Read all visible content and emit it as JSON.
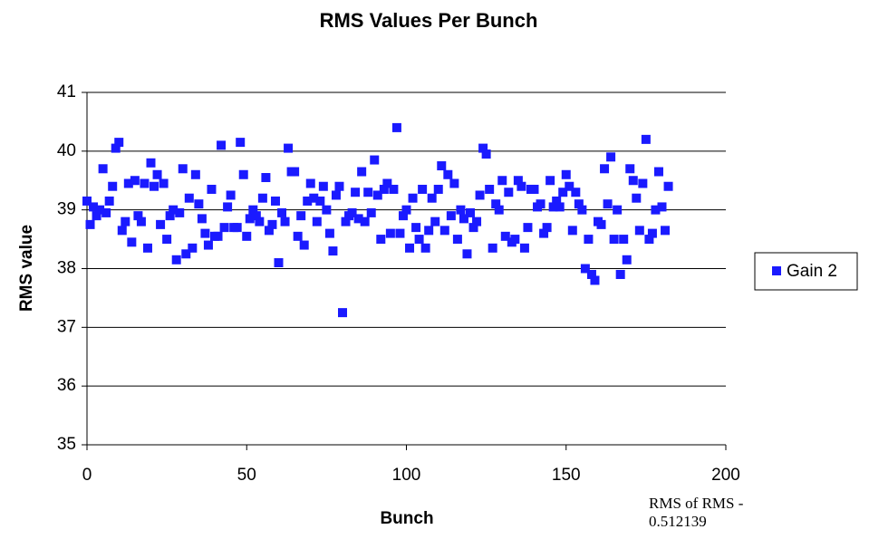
{
  "chart_data": {
    "type": "scatter",
    "title": "RMS Values Per Bunch",
    "x_label": "Bunch",
    "y_label": "RMS value",
    "annotation": "RMS of RMS - 0.512139",
    "xlim": [
      0,
      200
    ],
    "xticks": [
      0,
      50,
      100,
      150,
      200
    ],
    "ylim": [
      35,
      41
    ],
    "yticks": [
      35,
      36,
      37,
      38,
      39,
      40,
      41
    ],
    "grid": true,
    "legend": "right",
    "series": [
      {
        "name": "Gain 2",
        "color": "#1a1aff",
        "x": [
          0,
          1,
          2,
          3,
          4,
          5,
          6,
          7,
          8,
          9,
          10,
          11,
          12,
          13,
          14,
          15,
          16,
          17,
          18,
          19,
          20,
          21,
          22,
          23,
          24,
          25,
          26,
          27,
          28,
          29,
          30,
          31,
          32,
          33,
          34,
          35,
          36,
          37,
          38,
          39,
          40,
          41,
          42,
          43,
          44,
          45,
          46,
          47,
          48,
          49,
          50,
          51,
          52,
          53,
          54,
          55,
          56,
          57,
          58,
          59,
          60,
          61,
          62,
          63,
          64,
          65,
          66,
          67,
          68,
          69,
          70,
          71,
          72,
          73,
          74,
          75,
          76,
          77,
          78,
          79,
          80,
          81,
          82,
          83,
          84,
          85,
          86,
          87,
          88,
          89,
          90,
          91,
          92,
          93,
          94,
          95,
          96,
          97,
          98,
          99,
          100,
          101,
          102,
          103,
          104,
          105,
          106,
          107,
          108,
          109,
          110,
          111,
          112,
          113,
          114,
          115,
          116,
          117,
          118,
          119,
          120,
          121,
          122,
          123,
          124,
          125,
          126,
          127,
          128,
          129,
          130,
          131,
          132,
          133,
          134,
          135,
          136,
          137,
          138,
          139,
          140,
          141,
          142,
          143,
          144,
          145,
          146,
          147,
          148,
          149,
          150,
          151,
          152,
          153,
          154,
          155,
          156,
          157,
          158,
          159,
          160,
          161,
          162,
          163,
          164,
          165,
          166,
          167,
          168,
          169,
          170,
          171,
          172,
          173,
          174,
          175,
          176,
          177,
          178,
          179,
          180,
          181,
          182
        ],
        "values": [
          39.15,
          38.75,
          39.05,
          38.9,
          39.0,
          39.7,
          38.95,
          39.15,
          39.4,
          40.05,
          40.15,
          38.65,
          38.8,
          39.45,
          38.45,
          39.5,
          38.9,
          38.8,
          39.45,
          38.35,
          39.8,
          39.4,
          39.6,
          38.75,
          39.45,
          38.5,
          38.9,
          39.0,
          38.15,
          38.95,
          39.7,
          38.25,
          39.2,
          38.35,
          39.6,
          39.1,
          38.85,
          38.6,
          38.4,
          39.35,
          38.55,
          38.55,
          40.1,
          38.7,
          39.05,
          39.25,
          38.7,
          38.7,
          40.15,
          39.6,
          38.55,
          38.85,
          39.0,
          38.9,
          38.8,
          39.2,
          39.55,
          38.65,
          38.75,
          39.15,
          38.1,
          38.95,
          38.8,
          40.05,
          39.65,
          39.65,
          38.55,
          38.9,
          38.4,
          39.15,
          39.45,
          39.2,
          38.8,
          39.15,
          39.4,
          39.0,
          38.6,
          38.3,
          39.25,
          39.4,
          37.25,
          38.8,
          38.9,
          38.95,
          39.3,
          38.85,
          39.65,
          38.8,
          39.3,
          38.95,
          39.85,
          39.25,
          38.5,
          39.35,
          39.45,
          38.6,
          39.35,
          40.4,
          38.6,
          38.9,
          39.0,
          38.35,
          39.2,
          38.7,
          38.5,
          39.35,
          38.35,
          38.65,
          39.2,
          38.8,
          39.35,
          39.75,
          38.65,
          39.6,
          38.9,
          39.45,
          38.5,
          39.0,
          38.85,
          38.25,
          38.95,
          38.7,
          38.8,
          39.25,
          40.05,
          39.95,
          39.35,
          38.35,
          39.1,
          39.0,
          39.5,
          38.55,
          39.3,
          38.45,
          38.5,
          39.5,
          39.4,
          38.35,
          38.7,
          39.35,
          39.35,
          39.05,
          39.1,
          38.6,
          38.7,
          39.5,
          39.05,
          39.15,
          39.05,
          39.3,
          39.6,
          39.4,
          38.65,
          39.3,
          39.1,
          39.0,
          38.0,
          38.5,
          37.9,
          37.8,
          38.8,
          38.75,
          39.7,
          39.1,
          39.9,
          38.5,
          39.0,
          37.9,
          38.5,
          38.15,
          39.7,
          39.5,
          39.2,
          38.65,
          39.45,
          40.2,
          38.5,
          38.6,
          39.0,
          39.65,
          39.05,
          38.65,
          39.4
        ]
      }
    ]
  }
}
